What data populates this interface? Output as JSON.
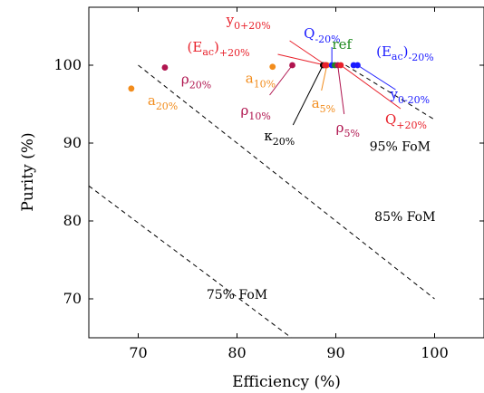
{
  "chart_data": {
    "type": "scatter",
    "title": "",
    "xlabel": "Efficiency (%)",
    "ylabel": "Purity (%)",
    "xlim": [
      65,
      105
    ],
    "ylim": [
      65,
      107
    ],
    "xticks": [
      "70",
      "80",
      "90",
      "100"
    ],
    "yticks": [
      "70",
      "80",
      "90",
      "100"
    ],
    "grid": false,
    "colors": {
      "orange": "#f28c1c",
      "purple": "#b0154f",
      "red": "#e8202a",
      "blue": "#1a1aff",
      "green": "#1f8a1f",
      "black": "#000000"
    },
    "fom_lines": [
      {
        "label": "95% FoM",
        "points": [
          [
            91.0,
            100.0
          ],
          [
            100.0,
            93.0
          ]
        ]
      },
      {
        "label": "85% FoM",
        "points": [
          [
            70.0,
            100.0
          ],
          [
            100.0,
            70.0
          ]
        ]
      },
      {
        "label": "75% FoM",
        "points": [
          [
            65.0,
            84.5
          ],
          [
            85.5,
            65.0
          ]
        ]
      }
    ],
    "fom_label_positions": {
      "95% FoM": [
        96.5,
        89.0
      ],
      "85% FoM": [
        97.0,
        80.0
      ],
      "75% FoM": [
        80.0,
        70.0
      ]
    },
    "points": [
      {
        "label": "a_{20%}",
        "x": 69.3,
        "y": 97.0,
        "color": "orange"
      },
      {
        "label": "ρ_{20%}",
        "x": 72.7,
        "y": 99.7,
        "color": "purple"
      },
      {
        "label": "a_{10%}",
        "x": 83.6,
        "y": 99.8,
        "color": "orange"
      },
      {
        "label": "ρ_{10%}",
        "x": 85.6,
        "y": 100.0,
        "color": "purple"
      },
      {
        "label": "κ_{20%}",
        "x": 88.7,
        "y": 100.0,
        "color": "black"
      },
      {
        "label": "a_{5%}",
        "x": 89.1,
        "y": 100.0,
        "color": "orange"
      },
      {
        "label": "y_{0+20%}",
        "x": 89.0,
        "y": 100.0,
        "color": "red"
      },
      {
        "label": "(E_ac)_{+20%}",
        "x": 88.9,
        "y": 100.0,
        "color": "red"
      },
      {
        "label": "Q_{-20%}",
        "x": 89.6,
        "y": 100.0,
        "color": "blue"
      },
      {
        "label": "ref",
        "x": 89.9,
        "y": 100.0,
        "color": "green"
      },
      {
        "label": "ρ_{5%}",
        "x": 90.2,
        "y": 100.0,
        "color": "purple"
      },
      {
        "label": "Q_{+20%}",
        "x": 90.5,
        "y": 100.0,
        "color": "red"
      },
      {
        "label": "(E_ac)_{-20%}",
        "x": 91.8,
        "y": 100.0,
        "color": "blue"
      },
      {
        "label": "y_{0-20%}",
        "x": 92.2,
        "y": 100.0,
        "color": "blue"
      }
    ]
  }
}
